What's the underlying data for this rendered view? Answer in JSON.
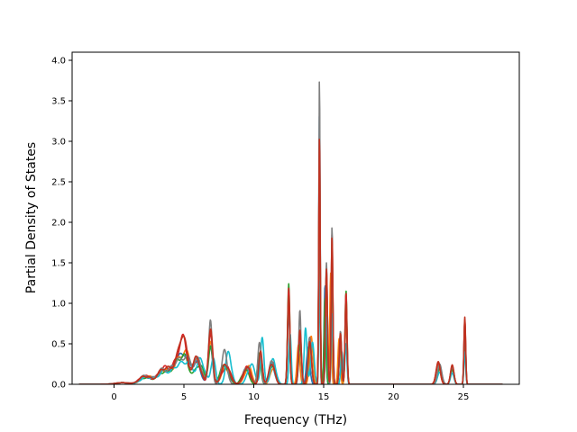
{
  "chart_data": {
    "type": "line",
    "title": "",
    "xlabel": "Frequency (THz)",
    "ylabel": "Partial Density of States",
    "xlim": [
      -3.0,
      29.0
    ],
    "ylim": [
      0.0,
      4.1
    ],
    "xticks": [
      0,
      5,
      10,
      15,
      20,
      25
    ],
    "yticks": [
      0.0,
      0.5,
      1.0,
      1.5,
      2.0,
      2.5,
      3.0,
      3.5,
      4.0
    ],
    "ytick_labels": [
      "0.0",
      "0.5",
      "1.0",
      "1.5",
      "2.0",
      "2.5",
      "3.0",
      "3.5",
      "4.0"
    ],
    "grid": false,
    "legend": "none",
    "x_start": -2.5,
    "x_end": 27.8,
    "series": [
      {
        "color": "#1f77b4",
        "peaks": [
          [
            0.6,
            0.02,
            0.5
          ],
          [
            2.2,
            0.09,
            0.4
          ],
          [
            3.5,
            0.17,
            0.45
          ],
          [
            4.5,
            0.26,
            0.35
          ],
          [
            5.1,
            0.3,
            0.3
          ],
          [
            5.9,
            0.26,
            0.3
          ],
          [
            6.9,
            0.5,
            0.15
          ],
          [
            7.9,
            0.22,
            0.3
          ],
          [
            9.5,
            0.2,
            0.25
          ],
          [
            10.4,
            0.35,
            0.12
          ],
          [
            11.3,
            0.25,
            0.2
          ],
          [
            12.5,
            0.9,
            0.08
          ],
          [
            13.3,
            0.55,
            0.1
          ],
          [
            13.9,
            0.45,
            0.12
          ],
          [
            14.7,
            3.4,
            0.05
          ],
          [
            15.1,
            1.2,
            0.07
          ],
          [
            15.6,
            1.6,
            0.06
          ],
          [
            16.2,
            0.6,
            0.08
          ],
          [
            16.6,
            0.9,
            0.07
          ],
          [
            23.3,
            0.22,
            0.15
          ],
          [
            24.2,
            0.2,
            0.12
          ],
          [
            25.1,
            0.65,
            0.06
          ]
        ]
      },
      {
        "color": "#ff7f0e",
        "peaks": [
          [
            0.6,
            0.02,
            0.5
          ],
          [
            2.3,
            0.1,
            0.4
          ],
          [
            3.6,
            0.18,
            0.45
          ],
          [
            4.6,
            0.25,
            0.35
          ],
          [
            5.2,
            0.33,
            0.3
          ],
          [
            6.0,
            0.28,
            0.3
          ],
          [
            6.9,
            0.55,
            0.15
          ],
          [
            8.0,
            0.2,
            0.3
          ],
          [
            9.6,
            0.22,
            0.25
          ],
          [
            10.5,
            0.32,
            0.12
          ],
          [
            11.4,
            0.22,
            0.2
          ],
          [
            12.5,
            1.05,
            0.08
          ],
          [
            13.2,
            0.5,
            0.1
          ],
          [
            14.1,
            0.6,
            0.12
          ],
          [
            14.7,
            3.0,
            0.05
          ],
          [
            15.2,
            1.3,
            0.07
          ],
          [
            15.5,
            1.35,
            0.06
          ],
          [
            16.1,
            0.55,
            0.08
          ],
          [
            16.6,
            0.85,
            0.07
          ],
          [
            23.2,
            0.24,
            0.15
          ],
          [
            24.2,
            0.22,
            0.12
          ],
          [
            25.1,
            0.72,
            0.06
          ]
        ]
      },
      {
        "color": "#2ca02c",
        "peaks": [
          [
            0.6,
            0.02,
            0.5
          ],
          [
            2.2,
            0.08,
            0.4
          ],
          [
            3.5,
            0.15,
            0.45
          ],
          [
            4.5,
            0.24,
            0.35
          ],
          [
            5.1,
            0.28,
            0.3
          ],
          [
            6.1,
            0.25,
            0.3
          ],
          [
            6.9,
            0.45,
            0.15
          ],
          [
            7.9,
            0.24,
            0.3
          ],
          [
            9.4,
            0.18,
            0.25
          ],
          [
            10.4,
            0.38,
            0.12
          ],
          [
            11.3,
            0.24,
            0.2
          ],
          [
            12.5,
            1.27,
            0.08
          ],
          [
            13.3,
            0.5,
            0.1
          ],
          [
            14.0,
            0.5,
            0.12
          ],
          [
            14.7,
            2.6,
            0.05
          ],
          [
            15.1,
            1.1,
            0.07
          ],
          [
            15.6,
            1.5,
            0.06
          ],
          [
            16.2,
            0.5,
            0.08
          ],
          [
            16.6,
            1.15,
            0.07
          ],
          [
            23.3,
            0.2,
            0.15
          ],
          [
            24.2,
            0.18,
            0.12
          ],
          [
            25.1,
            0.6,
            0.06
          ]
        ]
      },
      {
        "color": "#d62728",
        "peaks": [
          [
            0.6,
            0.02,
            0.5
          ],
          [
            2.2,
            0.1,
            0.4
          ],
          [
            3.6,
            0.2,
            0.45
          ],
          [
            4.6,
            0.28,
            0.35
          ],
          [
            5.0,
            0.42,
            0.25
          ],
          [
            5.9,
            0.3,
            0.3
          ],
          [
            6.9,
            0.6,
            0.15
          ],
          [
            8.0,
            0.22,
            0.3
          ],
          [
            9.5,
            0.2,
            0.25
          ],
          [
            10.5,
            0.36,
            0.12
          ],
          [
            11.3,
            0.26,
            0.2
          ],
          [
            12.5,
            1.2,
            0.08
          ],
          [
            13.3,
            0.6,
            0.1
          ],
          [
            14.0,
            0.55,
            0.12
          ],
          [
            14.7,
            2.9,
            0.05
          ],
          [
            15.2,
            1.4,
            0.07
          ],
          [
            15.6,
            1.9,
            0.06
          ],
          [
            16.2,
            0.6,
            0.08
          ],
          [
            16.6,
            1.1,
            0.07
          ],
          [
            23.2,
            0.26,
            0.15
          ],
          [
            24.2,
            0.22,
            0.12
          ],
          [
            25.1,
            0.8,
            0.06
          ]
        ]
      },
      {
        "color": "#17becf",
        "peaks": [
          [
            0.6,
            0.02,
            0.5
          ],
          [
            2.3,
            0.09,
            0.4
          ],
          [
            3.6,
            0.16,
            0.45
          ],
          [
            4.6,
            0.22,
            0.35
          ],
          [
            5.3,
            0.25,
            0.3
          ],
          [
            6.2,
            0.3,
            0.3
          ],
          [
            7.1,
            0.35,
            0.15
          ],
          [
            8.2,
            0.4,
            0.2
          ],
          [
            9.8,
            0.25,
            0.25
          ],
          [
            10.6,
            0.55,
            0.12
          ],
          [
            11.4,
            0.3,
            0.2
          ],
          [
            12.6,
            0.6,
            0.08
          ],
          [
            13.7,
            0.7,
            0.1
          ],
          [
            14.2,
            0.55,
            0.12
          ],
          [
            14.7,
            1.3,
            0.05
          ],
          [
            15.2,
            0.8,
            0.07
          ],
          [
            15.6,
            0.9,
            0.06
          ],
          [
            16.3,
            0.4,
            0.08
          ],
          [
            16.6,
            0.5,
            0.07
          ],
          [
            23.3,
            0.15,
            0.15
          ],
          [
            24.2,
            0.14,
            0.12
          ],
          [
            25.1,
            0.4,
            0.06
          ]
        ]
      },
      {
        "color": "#7f7f7f",
        "peaks": [
          [
            0.6,
            0.02,
            0.5
          ],
          [
            2.2,
            0.1,
            0.4
          ],
          [
            3.5,
            0.18,
            0.45
          ],
          [
            4.5,
            0.26,
            0.35
          ],
          [
            5.2,
            0.3,
            0.3
          ],
          [
            6.0,
            0.3,
            0.3
          ],
          [
            6.9,
            0.82,
            0.12
          ],
          [
            7.9,
            0.4,
            0.2
          ],
          [
            9.5,
            0.22,
            0.25
          ],
          [
            10.4,
            0.5,
            0.12
          ],
          [
            11.3,
            0.28,
            0.2
          ],
          [
            12.5,
            0.95,
            0.08
          ],
          [
            13.3,
            0.93,
            0.08
          ],
          [
            14.0,
            0.6,
            0.12
          ],
          [
            14.7,
            3.88,
            0.04
          ],
          [
            15.2,
            1.5,
            0.07
          ],
          [
            15.6,
            1.95,
            0.05
          ],
          [
            16.2,
            0.65,
            0.08
          ],
          [
            16.6,
            1.0,
            0.07
          ],
          [
            23.3,
            0.25,
            0.15
          ],
          [
            24.2,
            0.22,
            0.12
          ],
          [
            25.1,
            0.78,
            0.06
          ]
        ]
      },
      {
        "color": "#c0311f",
        "peaks": [
          [
            0.6,
            0.02,
            0.5
          ],
          [
            2.2,
            0.1,
            0.4
          ],
          [
            3.6,
            0.2,
            0.45
          ],
          [
            4.6,
            0.28,
            0.35
          ],
          [
            5.0,
            0.45,
            0.25
          ],
          [
            5.9,
            0.32,
            0.3
          ],
          [
            6.9,
            0.7,
            0.15
          ],
          [
            8.0,
            0.25,
            0.3
          ],
          [
            9.5,
            0.22,
            0.25
          ],
          [
            10.5,
            0.4,
            0.12
          ],
          [
            11.3,
            0.27,
            0.2
          ],
          [
            12.5,
            1.1,
            0.08
          ],
          [
            13.3,
            0.7,
            0.1
          ],
          [
            14.0,
            0.55,
            0.12
          ],
          [
            14.7,
            3.1,
            0.05
          ],
          [
            15.2,
            1.45,
            0.07
          ],
          [
            15.6,
            1.8,
            0.06
          ],
          [
            16.2,
            0.6,
            0.08
          ],
          [
            16.6,
            1.05,
            0.07
          ],
          [
            23.2,
            0.28,
            0.15
          ],
          [
            24.2,
            0.24,
            0.12
          ],
          [
            25.1,
            0.83,
            0.06
          ]
        ]
      }
    ]
  }
}
